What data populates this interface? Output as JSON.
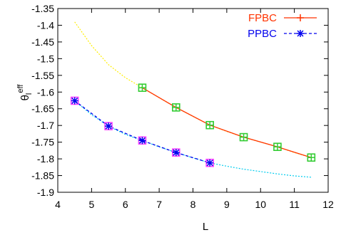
{
  "chart_data": {
    "type": "line",
    "xlabel": "L",
    "ylabel": {
      "base": "θ",
      "sub": "l",
      "sup": "eff"
    },
    "xlim": [
      4,
      12
    ],
    "ylim": [
      -1.9,
      -1.35
    ],
    "x_ticks": [
      4,
      5,
      6,
      7,
      8,
      9,
      10,
      11,
      12
    ],
    "x_tick_labels": [
      "4",
      "5",
      "6",
      "7",
      "8",
      "9",
      "10",
      "11",
      "12"
    ],
    "y_ticks": [
      -1.35,
      -1.4,
      -1.45,
      -1.5,
      -1.55,
      -1.6,
      -1.65,
      -1.7,
      -1.75,
      -1.8,
      -1.85,
      -1.9
    ],
    "y_tick_labels": [
      "-1.35",
      "-1.4",
      "-1.45",
      "-1.5",
      "-1.55",
      "-1.6",
      "-1.65",
      "-1.7",
      "-1.75",
      "-1.8",
      "-1.85",
      "-1.9"
    ],
    "grid": false,
    "legend_position": "top-right",
    "series": [
      {
        "name": "FPBC",
        "color": "#ff3300",
        "marker": "plus",
        "marker_color": "#33cc33",
        "marker_box_color": "#33cc33",
        "x": [
          6.5,
          7.5,
          8.5,
          9.5,
          10.5,
          11.5
        ],
        "y": [
          -1.587,
          -1.646,
          -1.699,
          -1.735,
          -1.764,
          -1.796
        ]
      },
      {
        "name": "PPBC",
        "color": "#0000ee",
        "line_style": "dashed",
        "marker": "star",
        "marker_color": "#0000ee",
        "marker_box_color": "#ff44ff",
        "x": [
          4.5,
          5.5,
          6.5,
          7.5,
          8.5
        ],
        "y": [
          -1.626,
          -1.702,
          -1.745,
          -1.781,
          -1.812
        ]
      }
    ],
    "fit_curves": [
      {
        "color": "#ffee00",
        "x": [
          4.5,
          5,
          5.5,
          6,
          6.5,
          7,
          7.5,
          8,
          8.5,
          9,
          9.5,
          10,
          10.5,
          11,
          11.5
        ],
        "y": [
          -1.39,
          -1.461,
          -1.518,
          -1.557,
          -1.587,
          -1.617,
          -1.646,
          -1.673,
          -1.699,
          -1.718,
          -1.735,
          -1.75,
          -1.764,
          -1.781,
          -1.796
        ]
      },
      {
        "color": "#00ccee",
        "x": [
          4.5,
          5,
          5.5,
          6,
          6.5,
          7,
          7.5,
          8,
          8.5,
          9,
          9.5,
          10,
          10.5,
          11,
          11.5
        ],
        "y": [
          -1.626,
          -1.668,
          -1.702,
          -1.727,
          -1.745,
          -1.764,
          -1.781,
          -1.797,
          -1.812,
          -1.822,
          -1.831,
          -1.838,
          -1.845,
          -1.851,
          -1.855
        ]
      }
    ]
  }
}
